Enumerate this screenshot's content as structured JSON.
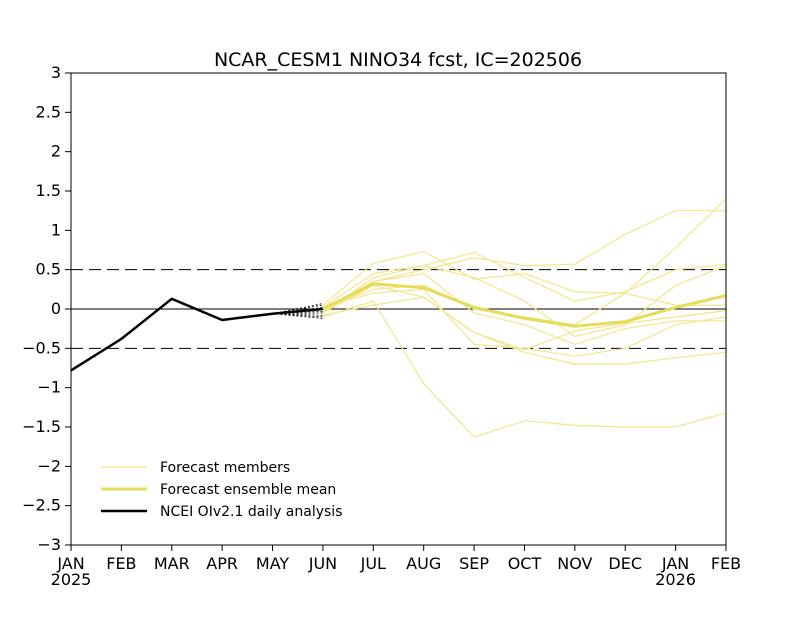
{
  "chart_data": {
    "type": "line",
    "title": "NCAR_CESM1 NINO34 fcst, IC=202506",
    "xlabel": "",
    "ylabel": "",
    "ylim": [
      -3,
      3
    ],
    "yticks": [
      "3",
      "2.5",
      "2",
      "1.5",
      "1",
      "0.5",
      "0",
      "-0.5",
      "-1",
      "-1.5",
      "-2",
      "-2.5",
      "-3"
    ],
    "x_categories": [
      "JAN",
      "FEB",
      "MAR",
      "APR",
      "MAY",
      "JUN",
      "JUL",
      "AUG",
      "SEP",
      "OCT",
      "NOV",
      "DEC",
      "JAN",
      "FEB"
    ],
    "year_labels": [
      {
        "index": 0,
        "text": "2025"
      },
      {
        "index": 12,
        "text": "2026"
      }
    ],
    "reference_lines": {
      "dashed": [
        0.5,
        -0.5
      ],
      "solid": [
        0
      ]
    },
    "grid": false,
    "legend": {
      "placement": "bottom-left",
      "entries": [
        {
          "label": "Forecast members",
          "color": "#f0e68c",
          "style": "thin"
        },
        {
          "label": "Forecast ensemble mean",
          "color": "#e6dc5a",
          "style": "thick"
        },
        {
          "label": "NCEI OIv2.1 daily analysis",
          "color": "#000000",
          "style": "thick"
        }
      ]
    },
    "series": [
      {
        "role": "observed",
        "color": "#000000",
        "x_index": [
          0,
          1,
          2,
          3,
          4,
          5
        ],
        "values": [
          -0.78,
          -0.38,
          0.13,
          -0.14,
          -0.06,
          0.0
        ]
      },
      {
        "role": "ensemble-mean",
        "color": "#e6dc5a",
        "x_index": [
          5,
          6,
          7,
          8,
          9,
          10,
          11,
          12,
          13
        ],
        "values": [
          0.0,
          0.32,
          0.27,
          0.02,
          -0.12,
          -0.22,
          -0.16,
          0.02,
          0.17
        ]
      },
      {
        "role": "member",
        "color": "#f0e68c",
        "x_index": [
          5,
          6,
          7,
          8,
          9,
          10,
          11,
          12,
          13
        ],
        "values": [
          0.05,
          0.58,
          0.73,
          0.38,
          0.45,
          0.22,
          0.2,
          0.78,
          1.4
        ]
      },
      {
        "role": "member",
        "color": "#f0e68c",
        "x_index": [
          5,
          6,
          7,
          8,
          9,
          10,
          11,
          12,
          13
        ],
        "values": [
          0.02,
          0.45,
          0.55,
          0.72,
          0.4,
          0.1,
          0.22,
          0.5,
          0.57
        ]
      },
      {
        "role": "member",
        "color": "#f0e68c",
        "x_index": [
          5,
          6,
          7,
          8,
          9,
          10,
          11,
          12,
          13
        ],
        "values": [
          0.0,
          0.35,
          0.5,
          0.65,
          0.55,
          0.57,
          0.95,
          1.25,
          1.25
        ]
      },
      {
        "role": "member",
        "color": "#f0e68c",
        "x_index": [
          5,
          6,
          7,
          8,
          9,
          10,
          11,
          12,
          13
        ],
        "values": [
          -0.05,
          0.4,
          0.55,
          0.4,
          0.1,
          -0.35,
          -0.2,
          0.3,
          0.55
        ]
      },
      {
        "role": "member",
        "color": "#f0e68c",
        "x_index": [
          5,
          6,
          7,
          8,
          9,
          10,
          11,
          12,
          13
        ],
        "values": [
          0.0,
          0.25,
          0.3,
          0.0,
          -0.1,
          -0.2,
          0.2,
          0.05,
          0.05
        ]
      },
      {
        "role": "member",
        "color": "#f0e68c",
        "x_index": [
          5,
          6,
          7,
          8,
          9,
          10,
          11,
          12,
          13
        ],
        "values": [
          -0.05,
          0.3,
          0.15,
          -0.3,
          -0.52,
          -0.28,
          -0.18,
          -0.1,
          -0.02
        ]
      },
      {
        "role": "member",
        "color": "#f0e68c",
        "x_index": [
          5,
          6,
          7,
          8,
          9,
          10,
          11,
          12,
          13
        ],
        "values": [
          0.03,
          0.2,
          0.25,
          -0.45,
          -0.5,
          -0.6,
          -0.5,
          -0.2,
          -0.1
        ]
      },
      {
        "role": "member",
        "color": "#f0e68c",
        "x_index": [
          5,
          6,
          7,
          8,
          9,
          10,
          11,
          12,
          13
        ],
        "values": [
          -0.08,
          0.05,
          0.15,
          -0.3,
          -0.55,
          -0.7,
          -0.7,
          -0.62,
          -0.55
        ]
      },
      {
        "role": "member",
        "color": "#f0e68c",
        "x_index": [
          5,
          6,
          7,
          8,
          9,
          10,
          11,
          12,
          13
        ],
        "values": [
          -0.1,
          0.1,
          -0.95,
          -1.63,
          -1.42,
          -1.48,
          -1.5,
          -1.5,
          -1.32
        ]
      },
      {
        "role": "member",
        "color": "#f0e68c",
        "x_index": [
          5,
          6,
          7,
          8,
          9,
          10,
          11,
          12,
          13
        ],
        "values": [
          -0.03,
          0.35,
          0.45,
          -0.05,
          -0.2,
          -0.45,
          -0.25,
          -0.15,
          -0.15
        ]
      }
    ],
    "ic_fan": {
      "anchor": {
        "x_index": 4,
        "value": -0.06
      },
      "values": [
        0.07,
        0.05,
        0.02,
        0.0,
        -0.03,
        -0.05,
        -0.08,
        -0.1,
        -0.12
      ]
    }
  }
}
